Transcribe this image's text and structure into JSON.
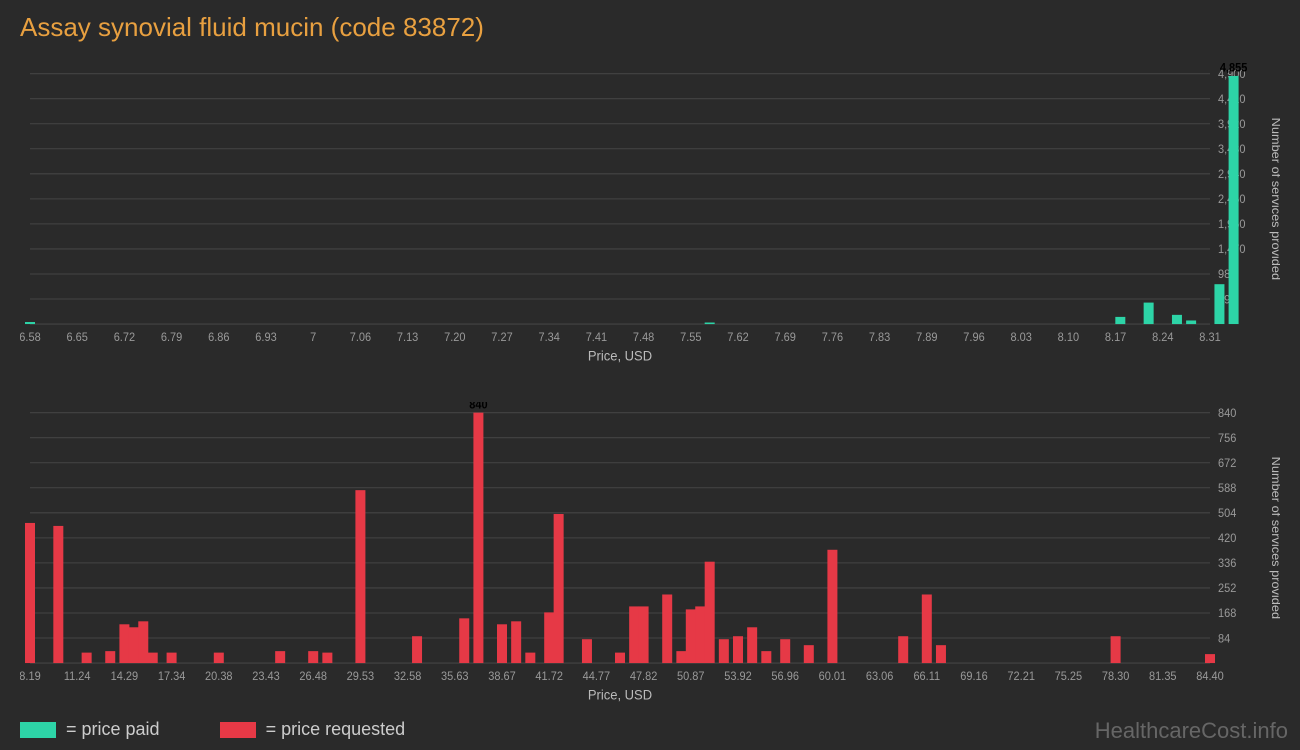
{
  "title": "Assay synovial fluid mucin (code 83872)",
  "watermark": "HealthcareCost.info",
  "legend": {
    "paid_label": "= price paid",
    "requested_label": "= price requested",
    "paid_color": "#2dd4a7",
    "requested_color": "#e63946"
  },
  "chart_top": {
    "type": "bar",
    "bar_color": "#2dd4a7",
    "background_color": "#2a2a2a",
    "grid_color": "#444444",
    "x_axis_label": "Price, USD",
    "y_axis_label": "Number of services provided",
    "x_ticks": [
      "6.58",
      "6.65",
      "6.72",
      "6.79",
      "6.86",
      "6.93",
      "7",
      "7.06",
      "7.13",
      "7.20",
      "7.27",
      "7.34",
      "7.41",
      "7.48",
      "7.55",
      "7.62",
      "7.69",
      "7.76",
      "7.83",
      "7.89",
      "7.96",
      "8.03",
      "8.10",
      "8.17",
      "8.24",
      "8.31"
    ],
    "y_ticks": [
      "490",
      "980",
      "1,470",
      "1,960",
      "2,450",
      "2,940",
      "3,430",
      "3,920",
      "4,410",
      "4,900"
    ],
    "y_max": 4900,
    "peak_label": "4,855",
    "bars": [
      {
        "x_index": 0,
        "value": 40
      },
      {
        "x_index": 14.4,
        "value": 30
      },
      {
        "x_index": 23.1,
        "value": 140
      },
      {
        "x_index": 23.7,
        "value": 420
      },
      {
        "x_index": 24.3,
        "value": 180
      },
      {
        "x_index": 24.6,
        "value": 70
      },
      {
        "x_index": 25.2,
        "value": 780
      },
      {
        "x_index": 25.5,
        "value": 4855,
        "label": "4,855"
      }
    ]
  },
  "chart_bottom": {
    "type": "bar",
    "bar_color": "#e63946",
    "background_color": "#2a2a2a",
    "grid_color": "#444444",
    "x_axis_label": "Price, USD",
    "y_axis_label": "Number of services provided",
    "x_ticks": [
      "8.19",
      "11.24",
      "14.29",
      "17.34",
      "20.38",
      "23.43",
      "26.48",
      "29.53",
      "32.58",
      "35.63",
      "38.67",
      "41.72",
      "44.77",
      "47.82",
      "50.87",
      "53.92",
      "56.96",
      "60.01",
      "63.06",
      "66.11",
      "69.16",
      "72.21",
      "75.25",
      "78.30",
      "81.35",
      "84.40"
    ],
    "y_ticks": [
      "84",
      "168",
      "252",
      "336",
      "420",
      "504",
      "588",
      "672",
      "756",
      "840"
    ],
    "y_max": 840,
    "peak_label": "840",
    "bars": [
      {
        "x_index": 0,
        "value": 470
      },
      {
        "x_index": 0.6,
        "value": 460
      },
      {
        "x_index": 1.2,
        "value": 35
      },
      {
        "x_index": 1.7,
        "value": 40
      },
      {
        "x_index": 2.0,
        "value": 130
      },
      {
        "x_index": 2.2,
        "value": 120
      },
      {
        "x_index": 2.4,
        "value": 140
      },
      {
        "x_index": 2.6,
        "value": 35
      },
      {
        "x_index": 3.0,
        "value": 35
      },
      {
        "x_index": 4.0,
        "value": 35
      },
      {
        "x_index": 5.3,
        "value": 40
      },
      {
        "x_index": 6.0,
        "value": 40
      },
      {
        "x_index": 6.3,
        "value": 35
      },
      {
        "x_index": 7.0,
        "value": 580
      },
      {
        "x_index": 8.2,
        "value": 90
      },
      {
        "x_index": 9.2,
        "value": 150
      },
      {
        "x_index": 9.5,
        "value": 840,
        "label": "840"
      },
      {
        "x_index": 10.0,
        "value": 130
      },
      {
        "x_index": 10.3,
        "value": 140
      },
      {
        "x_index": 10.6,
        "value": 35
      },
      {
        "x_index": 11.0,
        "value": 170
      },
      {
        "x_index": 11.2,
        "value": 500
      },
      {
        "x_index": 11.8,
        "value": 80
      },
      {
        "x_index": 12.5,
        "value": 35
      },
      {
        "x_index": 12.8,
        "value": 190
      },
      {
        "x_index": 13.0,
        "value": 190
      },
      {
        "x_index": 13.5,
        "value": 230
      },
      {
        "x_index": 13.8,
        "value": 40
      },
      {
        "x_index": 14.0,
        "value": 180
      },
      {
        "x_index": 14.2,
        "value": 190
      },
      {
        "x_index": 14.4,
        "value": 340
      },
      {
        "x_index": 14.7,
        "value": 80
      },
      {
        "x_index": 15.0,
        "value": 90
      },
      {
        "x_index": 15.3,
        "value": 120
      },
      {
        "x_index": 15.6,
        "value": 40
      },
      {
        "x_index": 16.0,
        "value": 80
      },
      {
        "x_index": 16.5,
        "value": 60
      },
      {
        "x_index": 17.0,
        "value": 380
      },
      {
        "x_index": 18.5,
        "value": 90
      },
      {
        "x_index": 19.0,
        "value": 230
      },
      {
        "x_index": 19.3,
        "value": 60
      },
      {
        "x_index": 23.0,
        "value": 90
      },
      {
        "x_index": 25.0,
        "value": 30
      }
    ]
  }
}
